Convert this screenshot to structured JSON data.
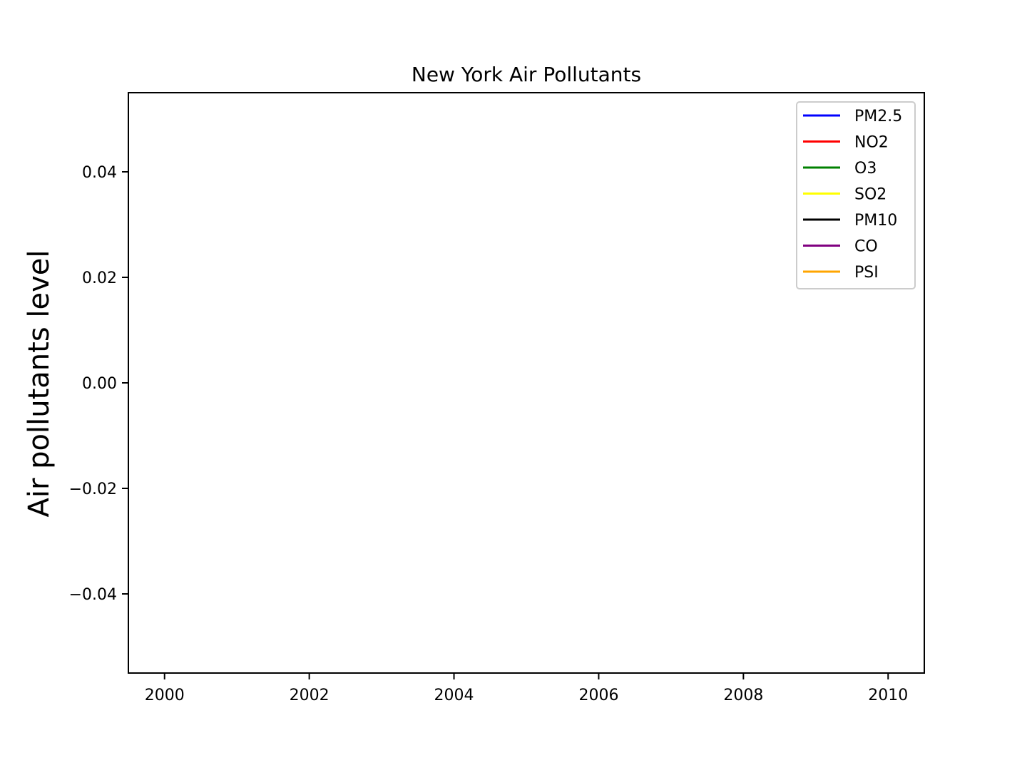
{
  "chart_data": {
    "type": "line",
    "title": "New York Air Pollutants",
    "xlabel": "",
    "ylabel": "Air pollutants level",
    "xlim": [
      1999.5,
      2010.5
    ],
    "ylim": [
      -0.055,
      0.055
    ],
    "x_ticks": [
      2000,
      2002,
      2004,
      2006,
      2008,
      2010
    ],
    "x_tick_labels": [
      "2000",
      "2002",
      "2004",
      "2006",
      "2008",
      "2010"
    ],
    "y_ticks": [
      0.04,
      0.02,
      0.0,
      -0.02,
      -0.04
    ],
    "y_tick_labels": [
      "0.04",
      "0.02",
      "0.00",
      "−0.02",
      "−0.04"
    ],
    "grid": false,
    "legend_position": "top-right",
    "series": [
      {
        "name": "PM2.5",
        "color": "#0000ff",
        "x": [],
        "values": []
      },
      {
        "name": "NO2",
        "color": "#ff0000",
        "x": [],
        "values": []
      },
      {
        "name": "O3",
        "color": "#008000",
        "x": [],
        "values": []
      },
      {
        "name": "SO2",
        "color": "#ffff00",
        "x": [],
        "values": []
      },
      {
        "name": "PM10",
        "color": "#000000",
        "x": [],
        "values": []
      },
      {
        "name": "CO",
        "color": "#800080",
        "x": [],
        "values": []
      },
      {
        "name": "PSI",
        "color": "#ffa500",
        "x": [],
        "values": []
      }
    ]
  }
}
